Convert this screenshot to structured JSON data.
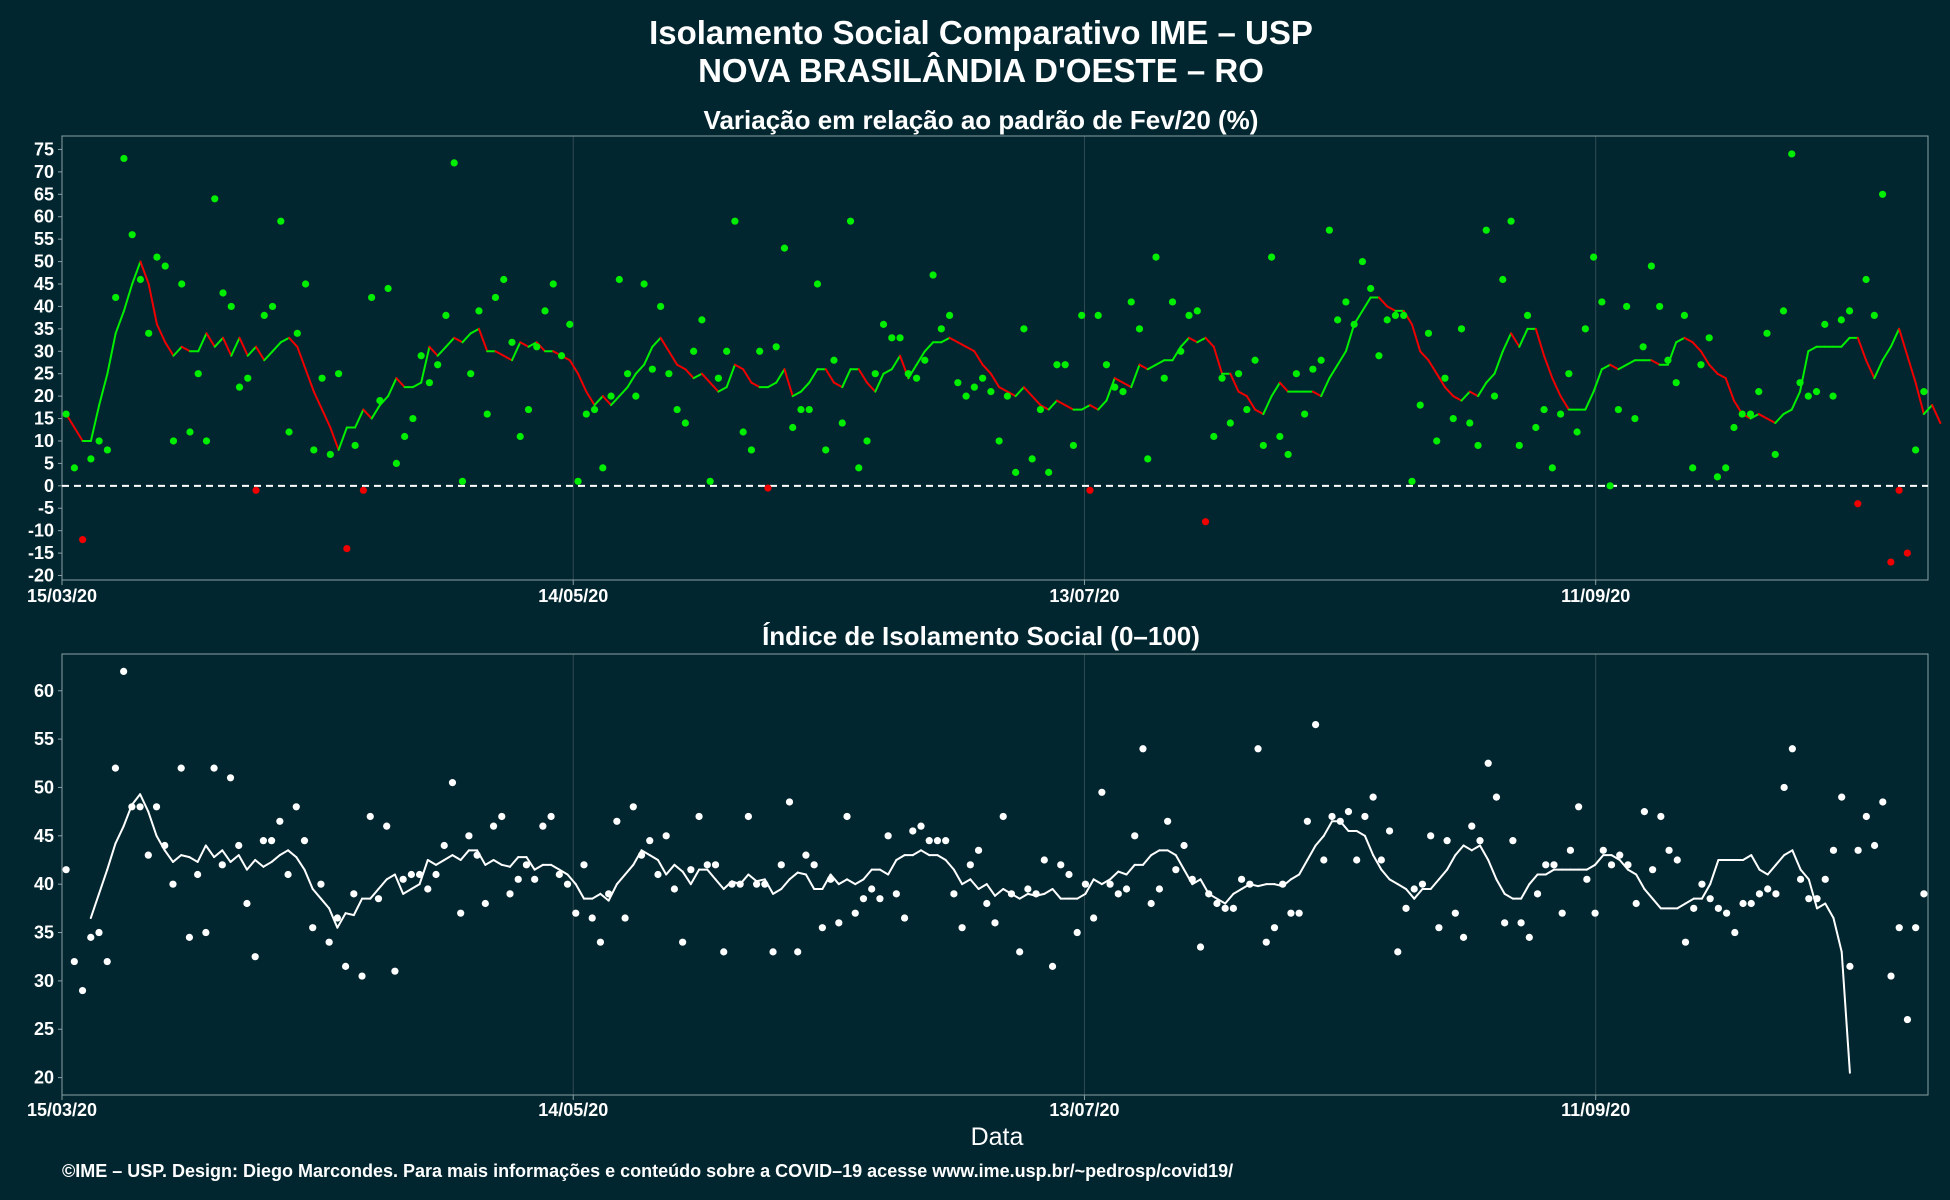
{
  "title_line1": "Isolamento Social Comparativo IME – USP",
  "title_line2": "NOVA BRASILÂNDIA D'OESTE – RO",
  "xlabel": "Data",
  "footer": "©IME – USP. Design: Diego Marcondes. Para mais informações e conteúdo sobre a COVID–19 acesse www.ime.usp.br/~pedrosp/covid19/",
  "colors": {
    "background": "#02262f",
    "positive": "#00ee00",
    "negative": "#ee0000",
    "index": "#ffffff",
    "grid": "#2f4a52"
  },
  "chart_data": [
    {
      "type": "scatter+line",
      "title": "Variação em relação ao padrão de Fev/20 (%)",
      "x_start": "15/03/20",
      "x_end": "20/10/20",
      "xticks": [
        "15/03/20",
        "14/05/20",
        "13/07/20",
        "11/09/20"
      ],
      "yticks": [
        -20,
        -15,
        -10,
        -5,
        0,
        5,
        10,
        15,
        20,
        25,
        30,
        35,
        40,
        45,
        50,
        55,
        60,
        65,
        70,
        75
      ],
      "ylim": [
        -21,
        78
      ],
      "reference_line": 0,
      "series": [
        {
          "values": [
            16,
            4,
            -12,
            6,
            10,
            8,
            42,
            73,
            56,
            46,
            34,
            51,
            49,
            10,
            45,
            12,
            25,
            10,
            64,
            43,
            40,
            22,
            24,
            -1,
            38,
            40,
            59,
            12,
            34,
            45,
            8,
            24,
            7,
            25,
            -14,
            9,
            -1,
            42,
            19,
            44,
            5,
            11,
            15,
            29,
            23,
            27,
            38,
            72,
            1,
            25,
            39,
            16,
            42,
            46,
            32,
            11,
            17,
            31,
            39,
            45,
            29,
            36,
            1,
            16,
            17,
            4,
            20,
            46,
            25,
            20,
            45,
            26,
            40,
            25,
            17,
            14,
            30,
            37,
            1,
            24,
            30,
            59,
            12,
            8,
            30,
            -0.5,
            31,
            53,
            13,
            17,
            17,
            45,
            8,
            28,
            14,
            59,
            4,
            10,
            25,
            36,
            33,
            33,
            25,
            24,
            28,
            47,
            35,
            38,
            23,
            20,
            22,
            24,
            21,
            10,
            20,
            3,
            35,
            6,
            17,
            3,
            27,
            27,
            9,
            38,
            -1,
            38,
            27,
            22,
            21,
            41,
            35,
            6,
            51,
            24,
            41,
            30,
            38,
            39,
            -8,
            11,
            24,
            14,
            25,
            17,
            28,
            9,
            51,
            11,
            7,
            25,
            16,
            26,
            28,
            57,
            37,
            41,
            36,
            50,
            44,
            29,
            37,
            38,
            38,
            1,
            18,
            34,
            10,
            24,
            15,
            35,
            14,
            9,
            57,
            20,
            46,
            59,
            9,
            38,
            13,
            17,
            4,
            16,
            25,
            12,
            35,
            51,
            41,
            0,
            17,
            40,
            15,
            31,
            49,
            40,
            28,
            23,
            38,
            4,
            27,
            33,
            2,
            4,
            13,
            16,
            16,
            21,
            34,
            7,
            39,
            74,
            23,
            20,
            21,
            36,
            20,
            37,
            39,
            -4,
            46,
            38,
            65,
            -17,
            -1,
            -15,
            8,
            21
          ]
        },
        {
          "moving_average": [
            16,
            13,
            10,
            10,
            18,
            25,
            34,
            39,
            45,
            50,
            45,
            36,
            32,
            29,
            31,
            30,
            30,
            34,
            31,
            33,
            29,
            33,
            29,
            31,
            28,
            30,
            32,
            33,
            31,
            26,
            21,
            17,
            13,
            8,
            13,
            13,
            17,
            15,
            18,
            20,
            24,
            22,
            22,
            23,
            31,
            29,
            31,
            33,
            32,
            34,
            35,
            30,
            30,
            29,
            28,
            32,
            31,
            32,
            30,
            30,
            29,
            28,
            25,
            21,
            18,
            20,
            18,
            20,
            22,
            25,
            27,
            31,
            33,
            30,
            27,
            26,
            24,
            25,
            23,
            21,
            22,
            27,
            26,
            23,
            22,
            22,
            23,
            26,
            20,
            21,
            23,
            26,
            26,
            23,
            22,
            26,
            26,
            23,
            21,
            25,
            26,
            29,
            24,
            27,
            30,
            32,
            32,
            33,
            32,
            31,
            30,
            27,
            25,
            22,
            21,
            20,
            22,
            20,
            18,
            17,
            19,
            18,
            17,
            17,
            18,
            17,
            19,
            24,
            23,
            22,
            27,
            26,
            27,
            28,
            28,
            31,
            33,
            32,
            33,
            31,
            25,
            25,
            21,
            20,
            17,
            16,
            20,
            23,
            21,
            21,
            21,
            21,
            20,
            24,
            27,
            30,
            36,
            39,
            42,
            42,
            40,
            39,
            39,
            36,
            30,
            28,
            25,
            22,
            20,
            19,
            21,
            20,
            23,
            25,
            30,
            34,
            31,
            35,
            35,
            29,
            24,
            20,
            17,
            17,
            17,
            21,
            26,
            27,
            26,
            27,
            28,
            28,
            28,
            27,
            27,
            32,
            33,
            32,
            30,
            27,
            25,
            24,
            19,
            16,
            15,
            16,
            15,
            14,
            16,
            17,
            21,
            30,
            31,
            31,
            31,
            31,
            33,
            33,
            28,
            24,
            28,
            31,
            35,
            29,
            23,
            16,
            18,
            14
          ]
        }
      ]
    },
    {
      "type": "scatter+line",
      "title": "Índice de Isolamento Social (0–100)",
      "x_start": "15/03/20",
      "x_end": "20/10/20",
      "xticks": [
        "15/03/20",
        "14/05/20",
        "13/07/20",
        "11/09/20"
      ],
      "yticks": [
        20,
        25,
        30,
        35,
        40,
        45,
        50,
        55,
        60
      ],
      "ylim": [
        18.2,
        63.8
      ],
      "series": [
        {
          "values": [
            41.5,
            32,
            29,
            34.5,
            35,
            32,
            52,
            62,
            48,
            48,
            43,
            48,
            44,
            40,
            52,
            34.5,
            41,
            35,
            52,
            42,
            51,
            44,
            38,
            32.5,
            44.5,
            44.5,
            46.5,
            41,
            48,
            44.5,
            35.5,
            40,
            34,
            36.5,
            31.5,
            39,
            30.5,
            47,
            38.5,
            46,
            31,
            40.5,
            41,
            41,
            39.5,
            41,
            44,
            50.5,
            37,
            45,
            43,
            38,
            46,
            47,
            39,
            40.5,
            42,
            40.5,
            46,
            47,
            41,
            40,
            37,
            42,
            36.5,
            34,
            39,
            46.5,
            36.5,
            48,
            43,
            44.5,
            41,
            45,
            39.5,
            34,
            41.5,
            47,
            42,
            42,
            33,
            40,
            40,
            47,
            40,
            40,
            33,
            42,
            48.5,
            33,
            43,
            42,
            35.5,
            40.5,
            36,
            47,
            37,
            38.5,
            39.5,
            38.5,
            45,
            39,
            36.5,
            45.5,
            46,
            44.5,
            44.5,
            44.5,
            39,
            35.5,
            42,
            43.5,
            38,
            36,
            47,
            39,
            33,
            39.5,
            39,
            42.5,
            31.5,
            42,
            41,
            35,
            40,
            36.5,
            49.5,
            40,
            39,
            39.5,
            45,
            54,
            38,
            39.5,
            46.5,
            41.5,
            44,
            40.5,
            33.5,
            39,
            38,
            37.5,
            37.5,
            40.5,
            40,
            54,
            34,
            35.5,
            40,
            37,
            37,
            46.5,
            56.5,
            42.5,
            47,
            46.5,
            47.5,
            42.5,
            47,
            49,
            42.5,
            45.5,
            33,
            37.5,
            39.5,
            40,
            45,
            35.5,
            44.5,
            37,
            34.5,
            46,
            44.5,
            52.5,
            49,
            36,
            44.5,
            36,
            34.5,
            39,
            42,
            42,
            37,
            43.5,
            48,
            40.5,
            37,
            43.5,
            42,
            43,
            42,
            38,
            47.5,
            41.5,
            47,
            43.5,
            42.5,
            34,
            37.5,
            40,
            38.5,
            37.5,
            37,
            35,
            38,
            38,
            39,
            39.5,
            39,
            50,
            54,
            40.5,
            38.5,
            38.5,
            40.5,
            43.5,
            49,
            31.5,
            43.5,
            47,
            44,
            48.5,
            30.5,
            35.5,
            26,
            35.5,
            39
          ]
        },
        {
          "moving_average": [
            null,
            null,
            null,
            36.5,
            39,
            41.5,
            44.2,
            46,
            48.2,
            49.3,
            47.5,
            45,
            43.5,
            42.3,
            43,
            42.8,
            42.3,
            44,
            42.8,
            43.5,
            42.3,
            43,
            41.5,
            42.5,
            41.8,
            42.3,
            43,
            43.5,
            42.8,
            41.5,
            39.5,
            38.5,
            37.5,
            35.5,
            37,
            36.8,
            38.5,
            38.5,
            39.5,
            40.5,
            41,
            39,
            39.5,
            40,
            42.5,
            42,
            42.5,
            43,
            42.5,
            43.5,
            43.5,
            42,
            42.5,
            42,
            41.8,
            42.8,
            42.8,
            41.5,
            42,
            42,
            41.5,
            41,
            40,
            38.5,
            38.5,
            39,
            38.3,
            40,
            41,
            42,
            43.5,
            43,
            42.5,
            41,
            42,
            41.3,
            40,
            41.5,
            41.5,
            40.5,
            39.5,
            40.3,
            40,
            41,
            40.3,
            40.5,
            39,
            39.5,
            40.5,
            41.2,
            41,
            39.5,
            39.5,
            41,
            40,
            40.5,
            40,
            40.5,
            41.5,
            41.5,
            41,
            42.5,
            43,
            43,
            43.5,
            43,
            43,
            42.5,
            41.5,
            40,
            40.5,
            39.5,
            40,
            38.8,
            39.5,
            39,
            38.5,
            39,
            38.8,
            39,
            39.5,
            38.5,
            38.5,
            38.5,
            39,
            40.5,
            40,
            40.5,
            41.3,
            41,
            42,
            42,
            43,
            43.5,
            43.5,
            43,
            41.5,
            40,
            40.5,
            39,
            38.5,
            38,
            39,
            39.5,
            40,
            39.8,
            40,
            40,
            39.8,
            40.5,
            41,
            42.5,
            44,
            45,
            46.5,
            46.5,
            45.5,
            45.5,
            45,
            43,
            41.5,
            40.5,
            40,
            39.5,
            38.5,
            39.5,
            39.5,
            40.5,
            41.5,
            43,
            44,
            43.5,
            44,
            42.5,
            40.5,
            39,
            38.5,
            38.5,
            40,
            41,
            41,
            41.5,
            41.5,
            41.5,
            41.5,
            41.5,
            42,
            43,
            43,
            42.5,
            41.5,
            41,
            39.5,
            38.5,
            37.5,
            37.5,
            37.5,
            38,
            38.5,
            38.5,
            40,
            42.5,
            42.5,
            42.5,
            42.5,
            43,
            41.5,
            41,
            42,
            43,
            43.5,
            41.5,
            40.5,
            37.5,
            38,
            36.5,
            33,
            20.5
          ]
        }
      ]
    }
  ]
}
